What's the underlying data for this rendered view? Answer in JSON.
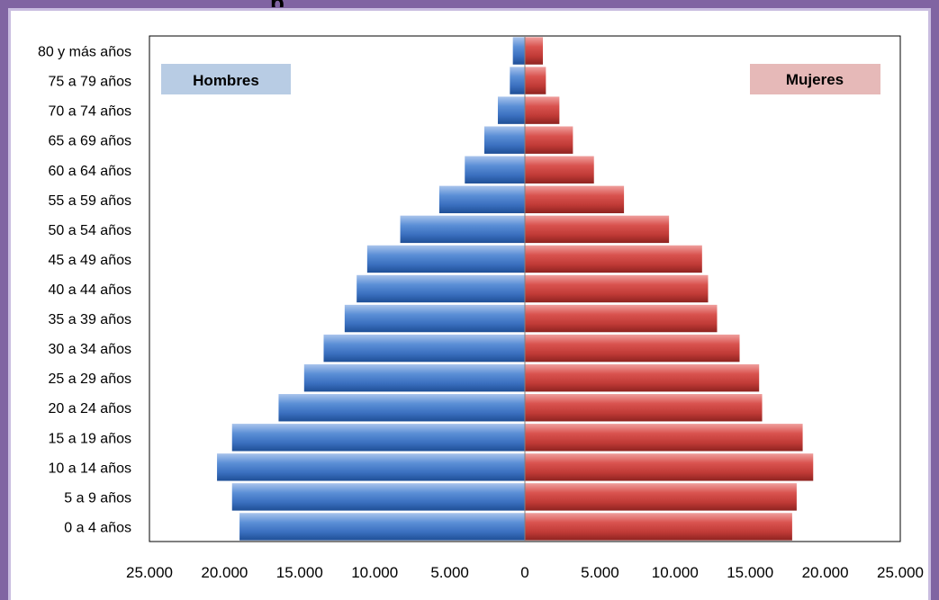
{
  "chart_data": {
    "type": "bar",
    "orientation": "horizontal",
    "subtype": "population-pyramid",
    "categories": [
      "80 y más años",
      "75 a 79 años",
      "70 a 74 años",
      "65 a 69 años",
      "60 a 64 años",
      "55 a 59 años",
      "50 a 54 años",
      "45 a 49 años",
      "40 a 44 años",
      "35 a 39 años",
      "30 a 34 años",
      "25 a 29 años",
      "20 a 24 años",
      "15 a 19 años",
      "10 a 14 años",
      "5 a 9 años",
      "0 a 4 años"
    ],
    "series": [
      {
        "name": "Hombres",
        "side": "left",
        "color": "#4f81bd",
        "values": [
          800,
          1000,
          1800,
          2700,
          4000,
          5700,
          8300,
          10500,
          11200,
          12000,
          13400,
          14700,
          16400,
          19500,
          20500,
          19500,
          19000
        ]
      },
      {
        "name": "Mujeres",
        "side": "right",
        "color": "#c0504d",
        "values": [
          1200,
          1400,
          2300,
          3200,
          4600,
          6600,
          9600,
          11800,
          12200,
          12800,
          14300,
          15600,
          15800,
          18500,
          19200,
          18100,
          17800
        ]
      }
    ],
    "xlim": [
      -25000,
      25000
    ],
    "x_ticks": [
      -25000,
      -20000,
      -15000,
      -10000,
      -5000,
      0,
      5000,
      10000,
      15000,
      20000,
      25000
    ],
    "x_tick_labels": [
      "25.000",
      "20.000",
      "15.000",
      "10.000",
      "5.000",
      "0",
      "5.000",
      "10.000",
      "15.000",
      "20.000",
      "25.000"
    ],
    "legend": {
      "left_label": "Hombres",
      "right_label": "Mujeres",
      "left_bg": "#b8cce4",
      "right_bg": "#e6b9b8"
    },
    "grid": false,
    "title_fragment": "p"
  }
}
